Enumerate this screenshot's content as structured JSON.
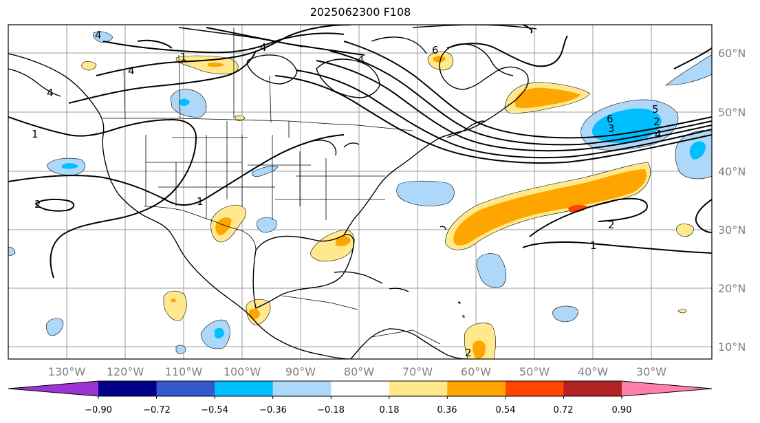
{
  "title": "2025062300 F108",
  "map": {
    "lon_labels": [
      "130°W",
      "120°W",
      "110°W",
      "100°W",
      "90°W",
      "80°W",
      "70°W",
      "60°W",
      "50°W",
      "40°W",
      "30°W"
    ],
    "lat_labels": [
      "60°N",
      "50°N",
      "40°N",
      "30°N",
      "20°N",
      "10°N"
    ],
    "contour_labels": [
      "4",
      "4",
      "4",
      "6",
      "6",
      "5",
      "4",
      "3",
      "2",
      "1",
      "1",
      "1",
      "2",
      "2",
      "2",
      "4",
      "1",
      "4"
    ]
  },
  "colorbar": {
    "colors": [
      "#9a35d0",
      "#00008b",
      "#3558cd",
      "#00bfff",
      "#add8f9",
      "#ffffff",
      "#ffe98c",
      "#ffa500",
      "#ff4500",
      "#b22222",
      "#ff80aa"
    ],
    "extend_low_color": "#9a35d0",
    "extend_high_color": "#ff80aa",
    "tick_labels": [
      "−0.90",
      "−0.72",
      "−0.54",
      "−0.36",
      "−0.18",
      "0.18",
      "0.36",
      "0.54",
      "0.72",
      "0.90"
    ]
  }
}
